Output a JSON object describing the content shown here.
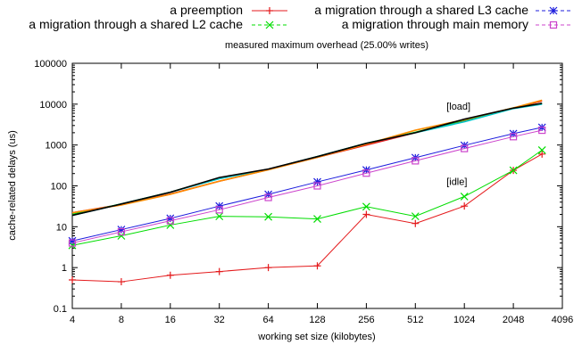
{
  "chart_data": {
    "type": "line",
    "title": "measured maximum overhead (25.00% writes)",
    "xlabel": "working set size (kilobytes)",
    "ylabel": "cache-related delays (us)",
    "x_scale": "log2",
    "y_scale": "log10",
    "xlim": [
      4,
      4096
    ],
    "ylim": [
      0.1,
      100000
    ],
    "x_ticks": [
      "4",
      "8",
      "16",
      "32",
      "64",
      "128",
      "256",
      "512",
      "1024",
      "2048",
      "4096"
    ],
    "y_ticks": [
      "0.1",
      "1",
      "10",
      "100",
      "1000",
      "10000",
      "100000"
    ],
    "grid": false,
    "legend_position": "top",
    "annotations": [
      {
        "text": "[load]",
        "x": 1024,
        "y": 9000
      },
      {
        "text": "[idle]",
        "x": 1024,
        "y": 130
      }
    ],
    "series": [
      {
        "name": "a preemption",
        "color": "#e41a1c",
        "marker": "plus",
        "group": "idle",
        "x": [
          4,
          8,
          16,
          32,
          64,
          128,
          256,
          512,
          1024,
          2048,
          3072
        ],
        "y": [
          0.5,
          0.45,
          0.65,
          0.8,
          1.0,
          1.1,
          20,
          12,
          32,
          240,
          600
        ]
      },
      {
        "name": "a migration through a shared L2 cache",
        "color": "#00dd00",
        "marker": "x",
        "group": "idle",
        "x": [
          4,
          8,
          16,
          32,
          64,
          128,
          256,
          512,
          1024,
          2048,
          3072
        ],
        "y": [
          3.5,
          6,
          11,
          18,
          17.5,
          15.5,
          31,
          18,
          55,
          240,
          750
        ]
      },
      {
        "name": "a migration through a shared L3 cache",
        "color": "#1c1cdd",
        "marker": "star",
        "group": "idle",
        "x": [
          4,
          8,
          16,
          32,
          64,
          128,
          256,
          512,
          1024,
          2048,
          3072
        ],
        "y": [
          4.5,
          8.5,
          16,
          32,
          62,
          125,
          245,
          490,
          980,
          1900,
          2700
        ]
      },
      {
        "name": "a migration through main memory",
        "color": "#cc44cc",
        "marker": "square",
        "group": "idle",
        "x": [
          4,
          8,
          16,
          32,
          64,
          128,
          256,
          512,
          1024,
          2048,
          3072
        ],
        "y": [
          4.0,
          7.5,
          14,
          26,
          52,
          100,
          205,
          410,
          820,
          1600,
          2300
        ]
      },
      {
        "color": "#e41a1c",
        "marker": "none",
        "group": "load",
        "x": [
          4,
          8,
          16,
          32,
          64,
          128,
          256,
          512,
          1024,
          2048,
          3072
        ],
        "y": [
          22,
          35,
          63,
          130,
          250,
          500,
          1000,
          2000,
          4000,
          8000,
          12000
        ]
      },
      {
        "color": "#00dd00",
        "marker": "none",
        "group": "load",
        "x": [
          4,
          8,
          16,
          32,
          64,
          128,
          256,
          512,
          1024,
          2048,
          3072
        ],
        "y": [
          20,
          36,
          70,
          155,
          255,
          520,
          1100,
          2050,
          4100,
          8100,
          10500
        ]
      },
      {
        "color": "#00c8c8",
        "marker": "none",
        "group": "load",
        "x": [
          4,
          8,
          16,
          32,
          64,
          128,
          256,
          512,
          1024,
          2048,
          3072
        ],
        "y": [
          19,
          36,
          70,
          150,
          255,
          520,
          1100,
          2000,
          3700,
          7800,
          10000
        ]
      },
      {
        "color": "#ff8c00",
        "marker": "none",
        "group": "load",
        "x": [
          4,
          8,
          16,
          32,
          64,
          128,
          256,
          512,
          1024,
          2048,
          3072
        ],
        "y": [
          22,
          34,
          62,
          130,
          248,
          500,
          1050,
          2300,
          4200,
          8100,
          12500
        ]
      },
      {
        "color": "#000000",
        "marker": "none",
        "group": "load",
        "x": [
          4,
          8,
          16,
          32,
          64,
          128,
          256,
          512,
          1024,
          2048,
          3072
        ],
        "y": [
          19,
          36,
          70,
          160,
          258,
          520,
          1100,
          2000,
          4300,
          8000,
          10500
        ]
      }
    ]
  }
}
